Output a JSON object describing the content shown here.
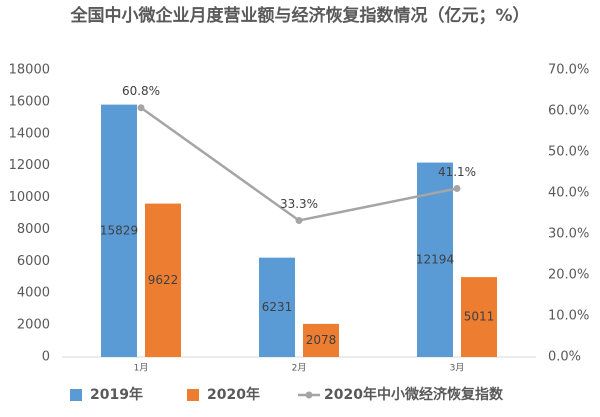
{
  "chart_data": {
    "type": "bar",
    "title": "全国中小微企业月度营业额与经济恢复指数情况（亿元；%）",
    "categories": [
      "1月",
      "2月",
      "3月"
    ],
    "series": [
      {
        "name": "2019年",
        "color": "#5b9bd5",
        "values": [
          15829,
          6231,
          12194
        ]
      },
      {
        "name": "2020年",
        "color": "#ed7d31",
        "values": [
          9622,
          2078,
          5011
        ]
      },
      {
        "name": "2020年中小微经济恢复指数",
        "type": "line",
        "axis": "y2",
        "color": "#a5a5a5",
        "values": [
          60.8,
          33.3,
          41.1
        ],
        "value_labels": [
          "60.8%",
          "33.3%",
          "41.1%"
        ]
      }
    ],
    "ylim": [
      0,
      18000
    ],
    "yticks": [
      0,
      2000,
      4000,
      6000,
      8000,
      10000,
      12000,
      14000,
      16000,
      18000
    ],
    "y2lim": [
      0,
      70
    ],
    "y2ticks": [
      {
        "value": 0,
        "label": "0.0%"
      },
      {
        "value": 10,
        "label": "10.0%"
      },
      {
        "value": 20,
        "label": "20.0%"
      },
      {
        "value": 30,
        "label": "30.0%"
      },
      {
        "value": 40,
        "label": "40.0%"
      },
      {
        "value": 50,
        "label": "50.0%"
      },
      {
        "value": 60,
        "label": "60.0%"
      },
      {
        "value": 70,
        "label": "70.0%"
      }
    ],
    "legend": "bottom"
  }
}
